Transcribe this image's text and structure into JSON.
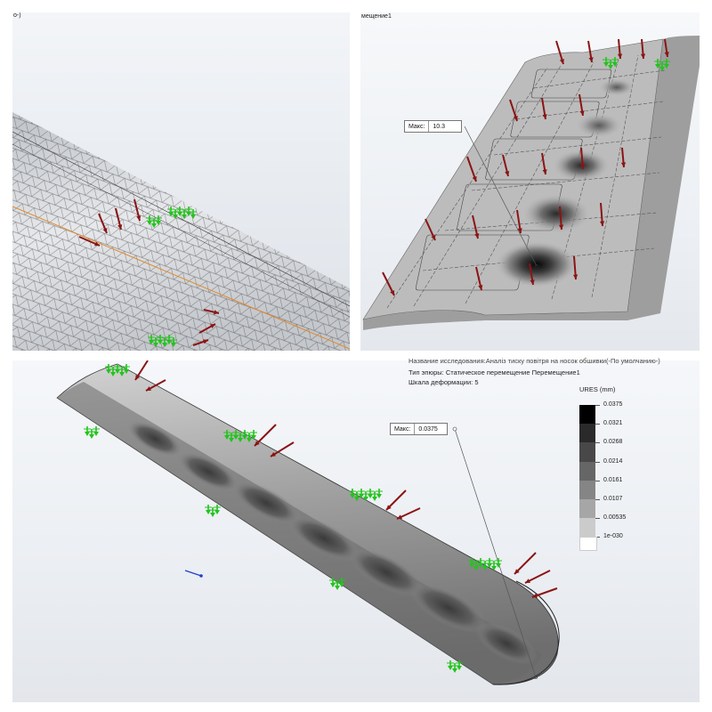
{
  "panels": {
    "mesh": {
      "caption": "о-)"
    },
    "top_right": {
      "caption": "мещение1",
      "max_label": "Макс:",
      "max_value": "10.3"
    },
    "bottom": {
      "max_label": "Макс:",
      "max_value": "0.0375",
      "study_name": "Название исследования:Аналіз тиску повітря на носок обшивки(-По умолчанию-)",
      "plot_type": "Тип эпюры: Статическое перемещение Перемещение1",
      "deformation_scale": "Шкала деформации: 5",
      "legend": {
        "title": "URES (mm)",
        "ticks": [
          "0.0375",
          "0.0321",
          "0.0268",
          "0.0214",
          "0.0161",
          "0.0107",
          "0.00535",
          "1e-030"
        ],
        "colors": [
          "#000000",
          "#2a2a2a",
          "#484848",
          "#666666",
          "#858585",
          "#a6a6a6",
          "#cbcbcb",
          "#ffffff"
        ]
      }
    }
  },
  "colors": {
    "load_arrow": "#8b1414",
    "fixture_arrow": "#22c41c",
    "mesh_edge": "#e08a2a"
  },
  "icons": [
    "force-arrow-icon",
    "fixture-arrow-icon"
  ]
}
